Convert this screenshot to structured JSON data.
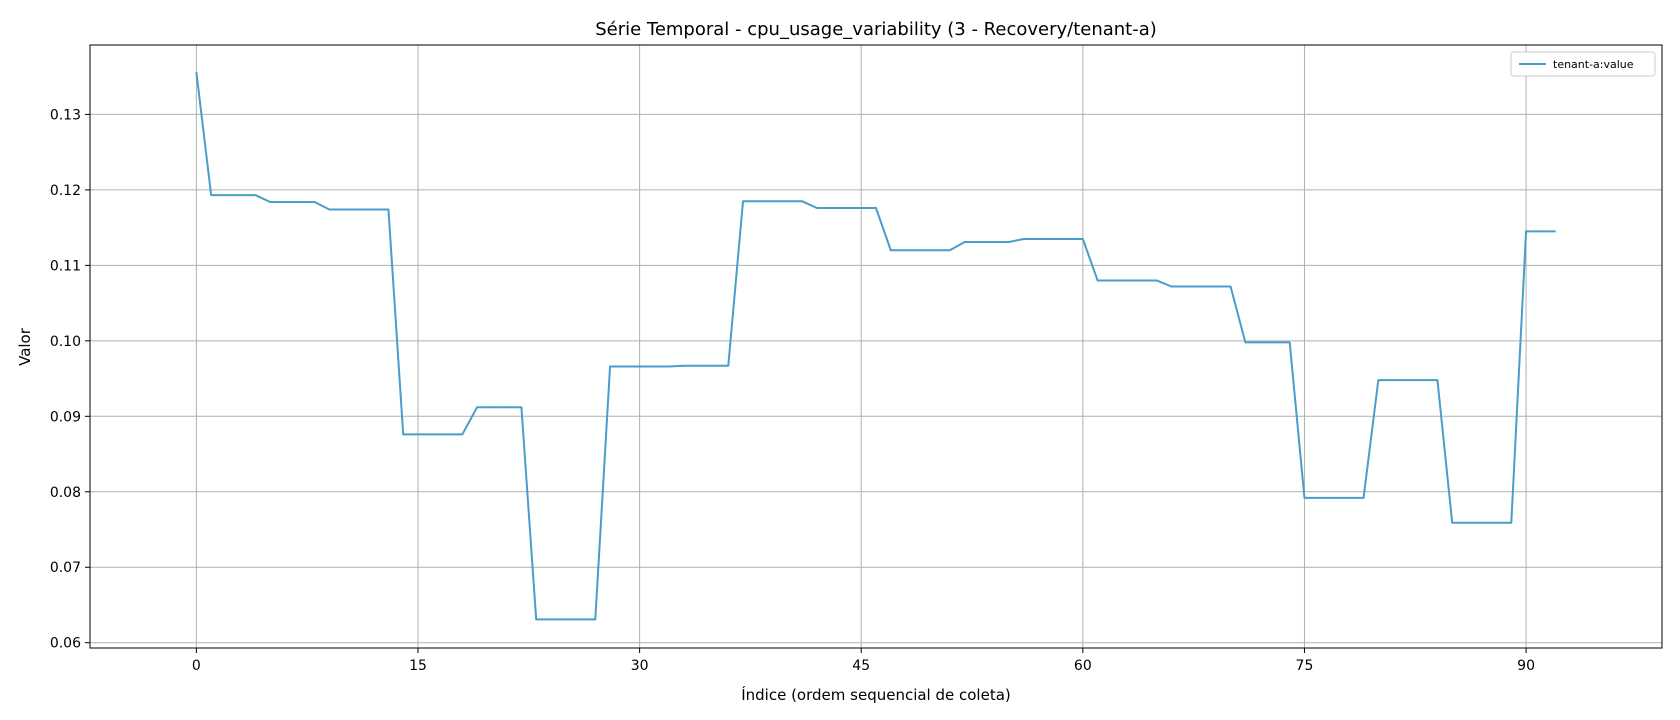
{
  "chart_data": {
    "type": "line",
    "title": "Série Temporal - cpu_usage_variability (3 - Recovery/tenant-a)",
    "xlabel": "Índice (ordem sequencial de coleta)",
    "ylabel": "Valor",
    "xlim": [
      -7.2,
      99.2
    ],
    "ylim": [
      0.0593,
      0.1392
    ],
    "xticks": [
      0,
      15,
      30,
      45,
      60,
      75,
      90
    ],
    "yticks": [
      0.06,
      0.07,
      0.08,
      0.09,
      0.1,
      0.11,
      0.12,
      0.13
    ],
    "ytick_labels": [
      "0.06",
      "0.07",
      "0.08",
      "0.09",
      "0.10",
      "0.11",
      "0.12",
      "0.13"
    ],
    "grid": true,
    "legend_position": "top-right",
    "line_color": "#4a9cc9",
    "series": [
      {
        "name": "tenant-a:value",
        "x": [
          0,
          1,
          2,
          3,
          4,
          5,
          6,
          7,
          8,
          9,
          10,
          11,
          12,
          13,
          14,
          15,
          16,
          17,
          18,
          19,
          20,
          21,
          22,
          23,
          24,
          25,
          26,
          27,
          28,
          29,
          30,
          31,
          32,
          33,
          34,
          35,
          36,
          37,
          38,
          39,
          40,
          41,
          42,
          43,
          44,
          45,
          46,
          47,
          48,
          49,
          50,
          51,
          52,
          53,
          54,
          55,
          56,
          57,
          58,
          59,
          60,
          61,
          62,
          63,
          64,
          65,
          66,
          67,
          68,
          69,
          70,
          71,
          72,
          73,
          74,
          75,
          76,
          77,
          78,
          79,
          80,
          81,
          82,
          83,
          84,
          85,
          86,
          87,
          88,
          89,
          90,
          91,
          92
        ],
        "values": [
          0.1356,
          0.1193,
          0.1193,
          0.1193,
          0.1193,
          0.1184,
          0.1184,
          0.1184,
          0.1184,
          0.1174,
          0.1174,
          0.1174,
          0.1174,
          0.1174,
          0.0876,
          0.0876,
          0.0876,
          0.0876,
          0.0876,
          0.0912,
          0.0912,
          0.0912,
          0.0912,
          0.0631,
          0.0631,
          0.0631,
          0.0631,
          0.0631,
          0.0966,
          0.0966,
          0.0966,
          0.0966,
          0.0966,
          0.0967,
          0.0967,
          0.0967,
          0.0967,
          0.1185,
          0.1185,
          0.1185,
          0.1185,
          0.1185,
          0.1176,
          0.1176,
          0.1176,
          0.1176,
          0.1176,
          0.112,
          0.112,
          0.112,
          0.112,
          0.112,
          0.1131,
          0.1131,
          0.1131,
          0.1131,
          0.1135,
          0.1135,
          0.1135,
          0.1135,
          0.1135,
          0.108,
          0.108,
          0.108,
          0.108,
          0.108,
          0.1072,
          0.1072,
          0.1072,
          0.1072,
          0.1072,
          0.0998,
          0.0998,
          0.0998,
          0.0998,
          0.0792,
          0.0792,
          0.0792,
          0.0792,
          0.0792,
          0.0948,
          0.0948,
          0.0948,
          0.0948,
          0.0948,
          0.0759,
          0.0759,
          0.0759,
          0.0759,
          0.0759,
          0.1145,
          0.1145,
          0.1145
        ]
      }
    ]
  }
}
